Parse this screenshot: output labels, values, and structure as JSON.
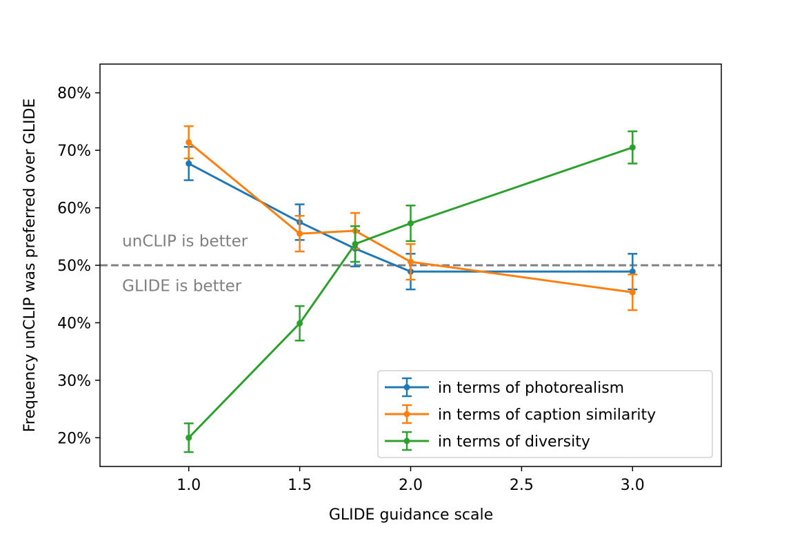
{
  "chart_data": {
    "type": "line",
    "title": "",
    "xlabel": "GLIDE guidance scale",
    "ylabel": "Frequency unCLIP was preferred over GLIDE",
    "xlim": [
      0.6,
      3.4
    ],
    "ylim": [
      15,
      85
    ],
    "xticks": [
      1.0,
      1.5,
      2.0,
      2.5,
      3.0
    ],
    "xtick_labels": [
      "1.0",
      "1.5",
      "2.0",
      "2.5",
      "3.0"
    ],
    "yticks": [
      20,
      30,
      40,
      50,
      60,
      70,
      80
    ],
    "ytick_labels": [
      "20%",
      "30%",
      "40%",
      "50%",
      "60%",
      "70%",
      "80%"
    ],
    "grid": false,
    "legend_position": "lower-right",
    "reference_line": {
      "y": 50,
      "color": "#808080",
      "style": "dashed"
    },
    "annotations": [
      {
        "text": "unCLIP is better",
        "x": 0.7,
        "y": 53.3,
        "color": "#808080"
      },
      {
        "text": "GLIDE is better",
        "x": 0.7,
        "y": 45.5,
        "color": "#808080"
      }
    ],
    "series": [
      {
        "name": "in terms of photorealism",
        "color": "#1f77b4",
        "x": [
          1.0,
          1.5,
          1.75,
          2.0,
          3.0
        ],
        "y": [
          67.7,
          57.5,
          52.9,
          48.9,
          48.9
        ],
        "err": [
          2.9,
          3.1,
          3.1,
          3.1,
          3.1
        ]
      },
      {
        "name": "in terms of caption similarity",
        "color": "#ff7f0e",
        "x": [
          1.0,
          1.5,
          1.75,
          2.0,
          3.0
        ],
        "y": [
          71.4,
          55.5,
          56.0,
          50.6,
          45.3
        ],
        "err": [
          2.8,
          3.1,
          3.1,
          3.1,
          3.1
        ]
      },
      {
        "name": "in terms of diversity",
        "color": "#2ca02c",
        "x": [
          1.0,
          1.5,
          1.75,
          2.0,
          3.0
        ],
        "y": [
          20.0,
          39.9,
          53.7,
          57.3,
          70.5
        ],
        "err": [
          2.5,
          3.0,
          3.1,
          3.1,
          2.8
        ]
      }
    ]
  }
}
